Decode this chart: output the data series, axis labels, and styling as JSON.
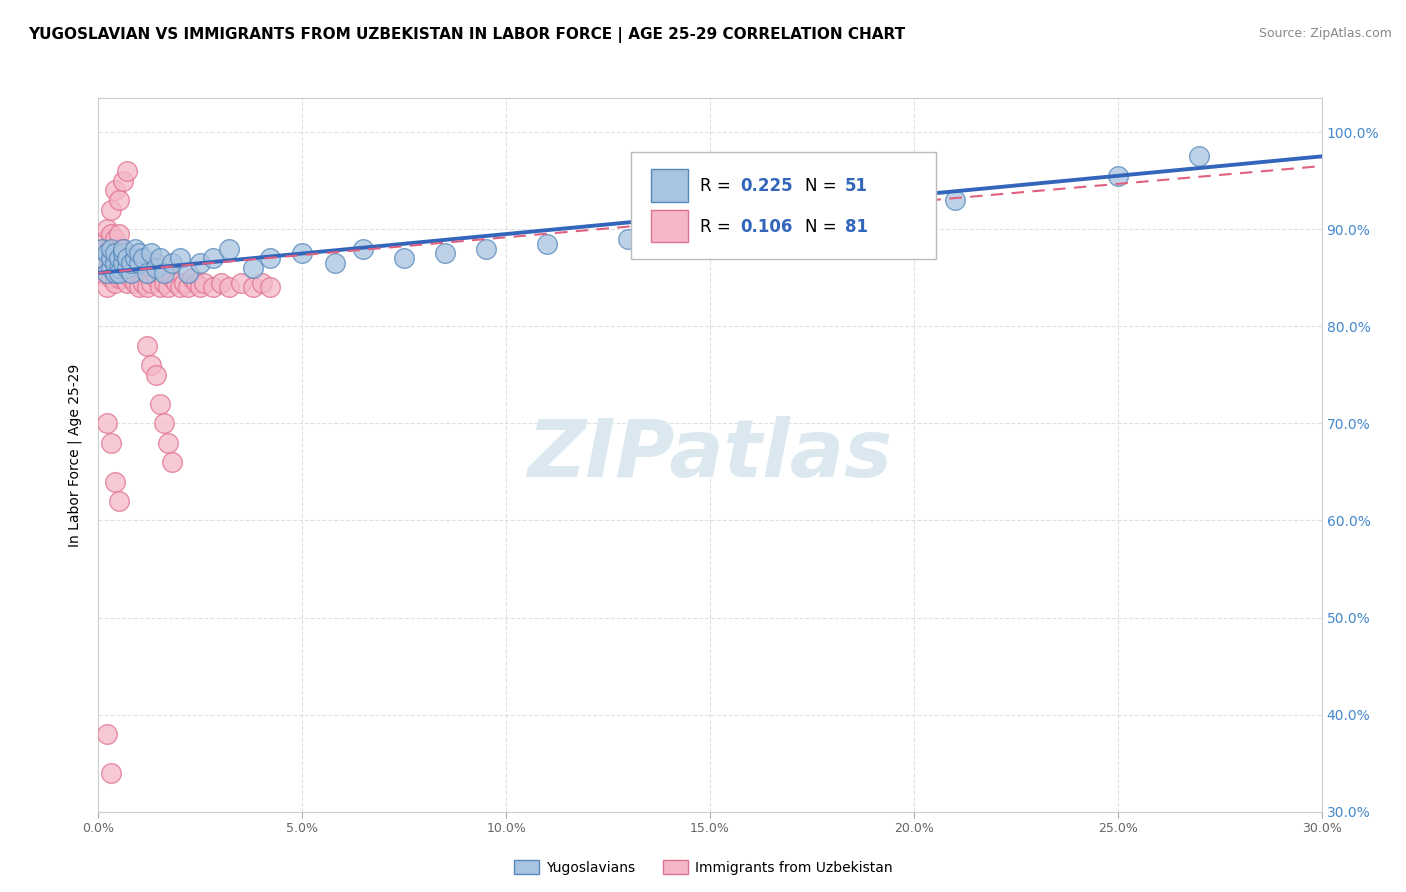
{
  "title": "YUGOSLAVIAN VS IMMIGRANTS FROM UZBEKISTAN IN LABOR FORCE | AGE 25-29 CORRELATION CHART",
  "source": "Source: ZipAtlas.com",
  "ylabel": "In Labor Force | Age 25-29",
  "xlim": [
    0.0,
    0.3
  ],
  "ylim": [
    0.3,
    1.035
  ],
  "xticks": [
    0.0,
    0.05,
    0.1,
    0.15,
    0.2,
    0.25,
    0.3
  ],
  "yticks": [
    0.3,
    0.4,
    0.5,
    0.6,
    0.7,
    0.8,
    0.9,
    1.0
  ],
  "ytick_labels": [
    "30.0%",
    "40.0%",
    "50.0%",
    "60.0%",
    "70.0%",
    "80.0%",
    "90.0%",
    "100.0%"
  ],
  "xtick_labels": [
    "0.0%",
    "5.0%",
    "10.0%",
    "15.0%",
    "20.0%",
    "25.0%",
    "30.0%"
  ],
  "blue_color": "#a8c4e0",
  "pink_color": "#f4b8c8",
  "blue_edge_color": "#5588bb",
  "pink_edge_color": "#e07090",
  "blue_line_color": "#3366bb",
  "pink_line_color": "#e06080",
  "watermark": "ZIPatlas",
  "watermark_color": "#dce8f0",
  "legend_label1": "Yugoslavians",
  "legend_label2": "Immigrants from Uzbekistan",
  "blue_x": [
    0.001,
    0.001,
    0.002,
    0.002,
    0.003,
    0.003,
    0.003,
    0.004,
    0.004,
    0.004,
    0.005,
    0.005,
    0.005,
    0.006,
    0.006,
    0.006,
    0.007,
    0.007,
    0.008,
    0.008,
    0.009,
    0.009,
    0.01,
    0.01,
    0.011,
    0.012,
    0.013,
    0.014,
    0.015,
    0.016,
    0.018,
    0.02,
    0.022,
    0.025,
    0.028,
    0.032,
    0.038,
    0.042,
    0.05,
    0.058,
    0.065,
    0.075,
    0.085,
    0.095,
    0.11,
    0.13,
    0.155,
    0.18,
    0.21,
    0.25,
    0.27
  ],
  "blue_y": [
    0.87,
    0.88,
    0.855,
    0.875,
    0.86,
    0.87,
    0.88,
    0.855,
    0.865,
    0.875,
    0.86,
    0.87,
    0.855,
    0.865,
    0.875,
    0.88,
    0.86,
    0.87,
    0.855,
    0.865,
    0.87,
    0.88,
    0.865,
    0.875,
    0.87,
    0.855,
    0.875,
    0.86,
    0.87,
    0.855,
    0.865,
    0.87,
    0.855,
    0.865,
    0.87,
    0.88,
    0.86,
    0.87,
    0.875,
    0.865,
    0.88,
    0.87,
    0.875,
    0.88,
    0.885,
    0.89,
    0.9,
    0.91,
    0.93,
    0.955,
    0.975
  ],
  "pink_x": [
    0.001,
    0.001,
    0.001,
    0.001,
    0.002,
    0.002,
    0.002,
    0.002,
    0.002,
    0.003,
    0.003,
    0.003,
    0.003,
    0.003,
    0.004,
    0.004,
    0.004,
    0.004,
    0.005,
    0.005,
    0.005,
    0.005,
    0.006,
    0.006,
    0.006,
    0.007,
    0.007,
    0.007,
    0.008,
    0.008,
    0.009,
    0.009,
    0.01,
    0.01,
    0.01,
    0.011,
    0.011,
    0.012,
    0.012,
    0.013,
    0.013,
    0.014,
    0.014,
    0.015,
    0.015,
    0.016,
    0.017,
    0.018,
    0.019,
    0.02,
    0.021,
    0.022,
    0.023,
    0.024,
    0.025,
    0.026,
    0.028,
    0.03,
    0.032,
    0.035,
    0.038,
    0.04,
    0.042,
    0.012,
    0.013,
    0.014,
    0.015,
    0.016,
    0.017,
    0.018,
    0.003,
    0.004,
    0.005,
    0.006,
    0.007,
    0.002,
    0.003,
    0.004,
    0.005,
    0.002,
    0.003
  ],
  "pink_y": [
    0.87,
    0.88,
    0.855,
    0.865,
    0.84,
    0.855,
    0.875,
    0.89,
    0.9,
    0.85,
    0.865,
    0.875,
    0.885,
    0.895,
    0.845,
    0.86,
    0.875,
    0.89,
    0.85,
    0.865,
    0.88,
    0.895,
    0.85,
    0.865,
    0.88,
    0.845,
    0.86,
    0.875,
    0.85,
    0.865,
    0.845,
    0.86,
    0.84,
    0.855,
    0.87,
    0.845,
    0.86,
    0.84,
    0.855,
    0.845,
    0.86,
    0.85,
    0.865,
    0.84,
    0.855,
    0.845,
    0.84,
    0.85,
    0.845,
    0.84,
    0.845,
    0.84,
    0.85,
    0.845,
    0.84,
    0.845,
    0.84,
    0.845,
    0.84,
    0.845,
    0.84,
    0.845,
    0.84,
    0.78,
    0.76,
    0.75,
    0.72,
    0.7,
    0.68,
    0.66,
    0.92,
    0.94,
    0.93,
    0.95,
    0.96,
    0.7,
    0.68,
    0.64,
    0.62,
    0.38,
    0.34
  ],
  "blue_trend_x": [
    0.0,
    0.3
  ],
  "blue_trend_y": [
    0.855,
    0.975
  ],
  "pink_trend_x": [
    0.0,
    0.3
  ],
  "pink_trend_y": [
    0.855,
    0.965
  ]
}
